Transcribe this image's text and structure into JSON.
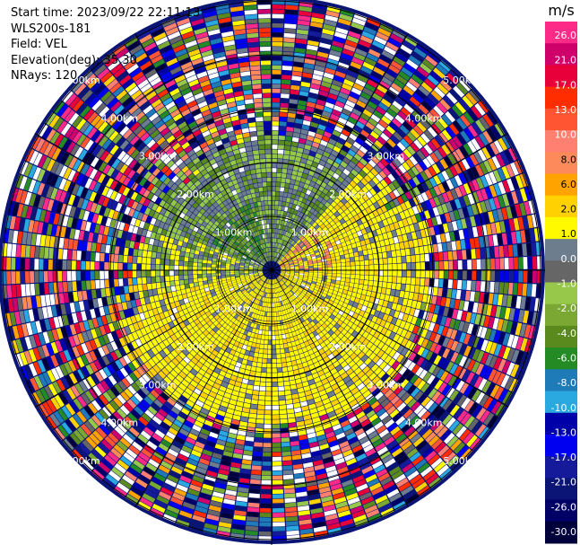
{
  "header": {
    "start_time": "Start time: 2023/09/22 22:11:13",
    "instrument": "WLS200s-181",
    "field": "Field: VEL",
    "elevation": "Elevation(deg): 35.30",
    "nrays": "NRays: 120"
  },
  "chart_data": {
    "type": "heatmap",
    "projection": "polar-ppi",
    "field": "VEL",
    "units": "m/s",
    "nrays": 120,
    "range_rings_km": [
      1,
      2,
      3,
      4,
      5
    ],
    "range_ring_labels": [
      "1.00km",
      "2.00km",
      "3.00km",
      "4.00km",
      "5.00km"
    ],
    "colorbar": {
      "unit_label": "m/s",
      "tick_labels": [
        "26.0",
        "21.0",
        "17.0",
        "13.0",
        "10.0",
        "8.0",
        "6.0",
        "2.0",
        "1.0",
        "0.0",
        "-1.0",
        "-2.0",
        "-4.0",
        "-6.0",
        "-8.0",
        "-10.0",
        "-13.0",
        "-17.0",
        "-21.0",
        "-26.0",
        "-30.0"
      ],
      "colors": [
        "#fe2a88",
        "#d0006a",
        "#e8003a",
        "#ff2d00",
        "#ff5533",
        "#ff8070",
        "#fd8a5a",
        "#ffa300",
        "#ffd100",
        "#fffa00",
        "#6e7d8d",
        "#666666",
        "#98c84a",
        "#7aa832",
        "#5a8a1e",
        "#248a24",
        "#1f7ab8",
        "#2aa8e0",
        "#0000a8",
        "#0000f0",
        "#151a9a",
        "#0a1575",
        "#000066",
        "#00003a"
      ]
    },
    "region_pattern": {
      "inner_gray_green_sector": "northwest and west within ~2.5 km",
      "inner_yellow_sector": "east and south within ~2.5 km",
      "outer_noise": "random colors beyond ~3 km"
    }
  }
}
